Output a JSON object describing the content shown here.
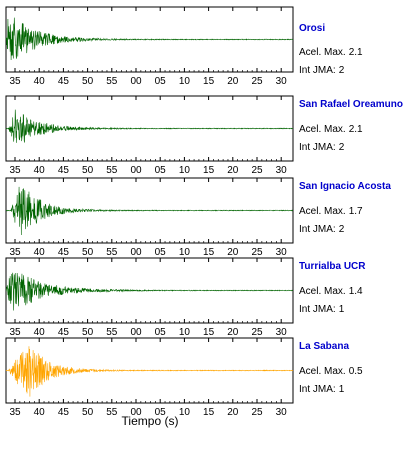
{
  "labels": {
    "acel": "Acel. Max.",
    "int": "Int JMA:"
  },
  "chart_data": {
    "type": "line",
    "xlabel": "Tiempo (s)",
    "x_ticks": [
      "35",
      "40",
      "45",
      "50",
      "55",
      "00",
      "05",
      "10",
      "15",
      "20",
      "25",
      "30"
    ],
    "panels": [
      {
        "station": "Orosi",
        "acel_max": "2.1",
        "int_jma": "2",
        "color": "#006400",
        "onset": 0.0,
        "peak": 0.5,
        "decay": 5.0,
        "amp": 0.95
      },
      {
        "station": "San Rafael Oreamuno",
        "acel_max": "2.1",
        "int_jma": "2",
        "color": "#006400",
        "onset": 0.5,
        "peak": 2.0,
        "decay": 4.5,
        "amp": 0.7
      },
      {
        "station": "San Ignacio Acosta",
        "acel_max": "1.7",
        "int_jma": "2",
        "color": "#006400",
        "onset": 1.0,
        "peak": 3.0,
        "decay": 4.0,
        "amp": 0.95
      },
      {
        "station": "Turrialba UCR",
        "acel_max": "1.4",
        "int_jma": "1",
        "color": "#006400",
        "onset": 0.0,
        "peak": 1.0,
        "decay": 6.0,
        "amp": 0.8
      },
      {
        "station": "La Sabana",
        "acel_max": "0.5",
        "int_jma": "1",
        "color": "#FFA500",
        "onset": 0.5,
        "peak": 4.5,
        "decay": 4.0,
        "amp": 0.95
      }
    ]
  }
}
